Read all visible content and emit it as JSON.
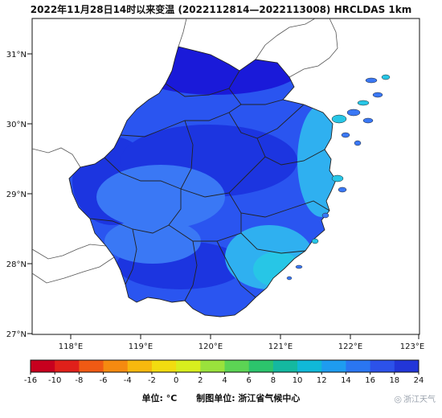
{
  "title": "2022年11月28日14时以来变温 (2022112814—2022113008)  HRCLDAS 1km",
  "map": {
    "lat_ticks": [
      "31°N",
      "30°N",
      "29°N",
      "28°N",
      "27°N"
    ],
    "lon_ticks": [
      "118°E",
      "119°E",
      "120°E",
      "121°E",
      "122°E",
      "123°E"
    ],
    "colors": {
      "deep": "#1a1ad9",
      "dark": "#1c35e0",
      "main": "#2a55f0",
      "light": "#3a78f5",
      "coast": "#2fb0f0",
      "cyan": "#27c6e6",
      "land_outside": "#ffffff",
      "border": "#222222"
    }
  },
  "colorbar": {
    "ticks": [
      "-16",
      "-10",
      "-8",
      "-6",
      "-4",
      "-2",
      "0",
      "2",
      "4",
      "6",
      "8",
      "10",
      "12",
      "14",
      "16",
      "18",
      "24"
    ],
    "colors": [
      "#c8001e",
      "#e0201a",
      "#f05a14",
      "#f58a10",
      "#f7b80e",
      "#f2dc10",
      "#d8ee1e",
      "#9ae23c",
      "#5cd454",
      "#2cc46c",
      "#14b8a0",
      "#10b8d8",
      "#1e9cf0",
      "#2a76f2",
      "#2c52ea",
      "#2236d8"
    ]
  },
  "unit_label": "单位: °C",
  "producer_label": "制图单位: 浙江省气候中心",
  "watermark": "浙江天气"
}
